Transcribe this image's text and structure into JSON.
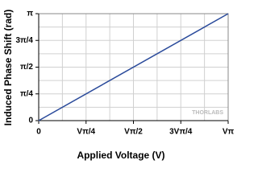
{
  "chart_data": {
    "type": "line",
    "x_label": "Applied Voltage (V)",
    "y_label": "Induced Phase Shift (rad)",
    "watermark": "THORLABS",
    "x": [
      0,
      1
    ],
    "series": [
      {
        "color": "#2b4b9b",
        "values": [
          0,
          1
        ]
      }
    ],
    "xlim": [
      0,
      1
    ],
    "ylim": [
      0,
      1
    ],
    "xticks": [
      0,
      {
        "value": 0.25,
        "label": "Vπ/4"
      },
      {
        "value": 0.5,
        "label": "Vπ/2"
      },
      {
        "value": 0.75,
        "label": "3Vπ/4"
      },
      {
        "value": 1,
        "label": "Vπ"
      }
    ],
    "yticks": [
      0,
      {
        "value": 0.25,
        "label": "π/4"
      },
      {
        "value": 0.5,
        "label": "π/2"
      },
      {
        "value": 0.75,
        "label": "3π/4"
      },
      {
        "value": 1,
        "label": "π"
      }
    ],
    "grid": true
  }
}
